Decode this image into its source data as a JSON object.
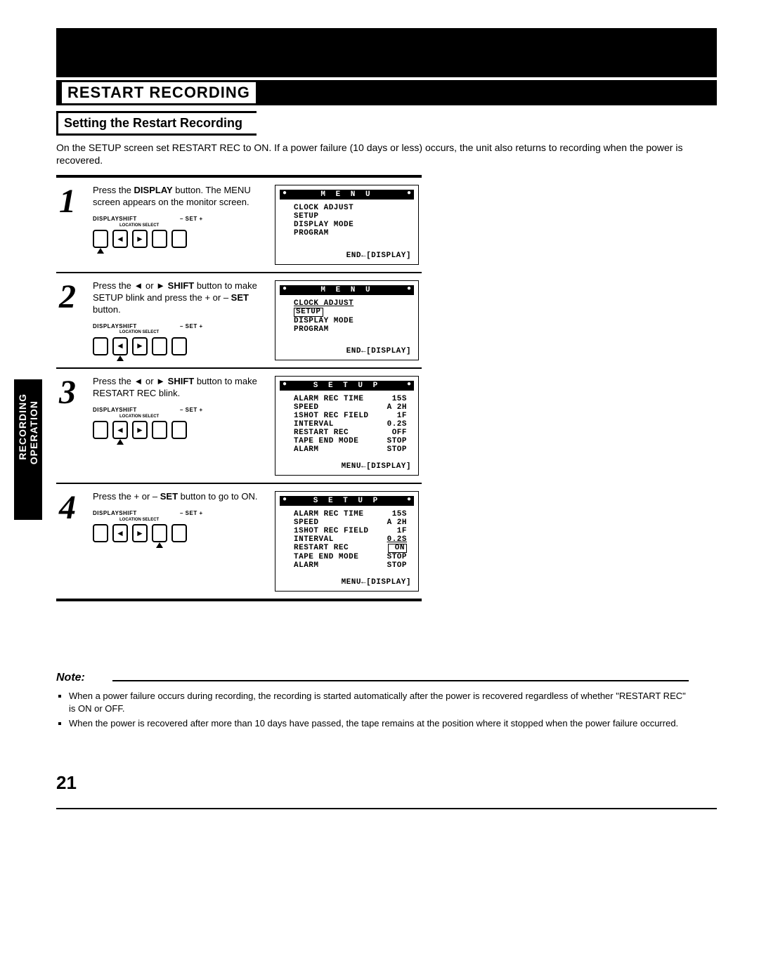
{
  "header": {
    "banner_title": "RESTART RECORDING",
    "section_title": "Setting the Restart Recording",
    "intro": "On the SETUP screen set RESTART REC to ON. If a power failure (10 days or less) occurs, the unit also returns to recording when the power is recovered."
  },
  "side_label_1": "RECORDING",
  "side_label_2": "OPERATION",
  "button_labels": {
    "display": "DISPLAY",
    "shift": "SHIFT",
    "loc": "LOCATION SELECT",
    "set": "– SET +"
  },
  "steps": [
    {
      "num": "1",
      "text_parts": [
        "Press the ",
        "DISPLAY",
        " button. The MENU screen appears on the monitor screen."
      ],
      "arrow_index": 0,
      "screen": {
        "title": "M E N U",
        "lines": [
          "CLOCK ADJUST",
          "SETUP",
          "DISPLAY MODE",
          "PROGRAM"
        ],
        "footer": "END←[DISPLAY]"
      }
    },
    {
      "num": "2",
      "text_parts": [
        "Press the ◄ or ► ",
        "SHIFT",
        " button to make SETUP blink and press the + or – ",
        "SET",
        " button."
      ],
      "arrow_index": 1,
      "screen": {
        "title": "M E N U",
        "lines_html": [
          "<u>CLOCK ADJUST</u>",
          "<span class='boxed'>SETUP</span>",
          "DISPLAY MODE",
          "PROGRAM"
        ],
        "footer": "END←[DISPLAY]"
      }
    },
    {
      "num": "3",
      "text_parts": [
        "Press the ◄ or ► ",
        "SHIFT",
        " button to make RESTART REC blink."
      ],
      "arrow_index": 1,
      "screen": {
        "title": "S E T U P",
        "rows": [
          [
            "ALARM REC TIME",
            "15S"
          ],
          [
            "          SPEED",
            "A 2H"
          ],
          [
            "1SHOT REC FIELD",
            "1F"
          ],
          [
            "        INTERVAL",
            "0.2S"
          ],
          [
            "RESTART REC",
            "OFF"
          ],
          [
            "TAPE END MODE",
            "STOP"
          ],
          [
            "         ALARM",
            "STOP"
          ]
        ],
        "footer": "MENU←[DISPLAY]"
      }
    },
    {
      "num": "4",
      "text_parts": [
        "Press the + or – ",
        "SET",
        " button to go to ON."
      ],
      "arrow_index": 3,
      "screen": {
        "title": "S E T U P",
        "rows_html": [
          [
            "ALARM REC TIME",
            "15S"
          ],
          [
            "          SPEED",
            "A 2H"
          ],
          [
            "1SHOT REC FIELD",
            "1F"
          ],
          [
            "        INTERVAL",
            "<u>0.2S</u>"
          ],
          [
            "RESTART REC",
            "<span class='boxed'>&nbsp;ON</span>"
          ],
          [
            "TAPE END MODE",
            "STOP"
          ],
          [
            "         ALARM",
            "STOP"
          ]
        ],
        "footer": "MENU←[DISPLAY]"
      }
    }
  ],
  "note": {
    "title": "Note:",
    "items": [
      "When a power failure occurs during recording, the recording is started automatically after the power is recovered regardless of whether \"RESTART REC\" is ON or OFF.",
      "When the power is recovered after more than 10 days have passed, the tape remains at the position where it stopped when the power failure occurred."
    ]
  },
  "page_number": "21",
  "colors": {
    "ink": "#000000",
    "paper": "#ffffff"
  }
}
